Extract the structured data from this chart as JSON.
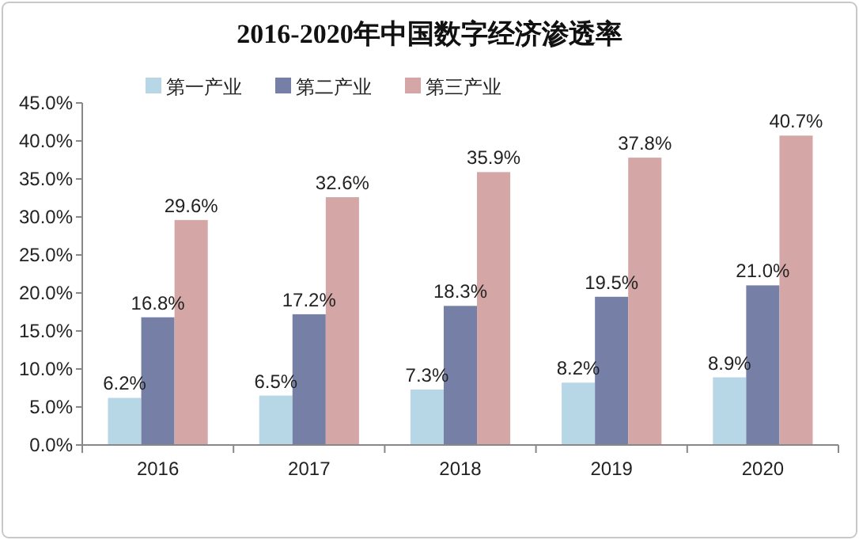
{
  "chart_data": {
    "type": "bar",
    "title": "2016-2020年中国数字经济渗透率",
    "categories": [
      "2016",
      "2017",
      "2018",
      "2019",
      "2020"
    ],
    "series": [
      {
        "name": "第一产业",
        "color": "#b7d6e6",
        "values": [
          6.2,
          6.5,
          7.3,
          8.2,
          8.9
        ],
        "value_labels": [
          "6.2%",
          "6.5%",
          "7.3%",
          "8.2%",
          "8.9%"
        ]
      },
      {
        "name": "第二产业",
        "color": "#7680a6",
        "values": [
          16.8,
          17.2,
          18.3,
          19.5,
          21.0
        ],
        "value_labels": [
          "16.8%",
          "17.2%",
          "18.3%",
          "19.5%",
          "21.0%"
        ]
      },
      {
        "name": "第三产业",
        "color": "#d4a6a6",
        "values": [
          29.6,
          32.6,
          35.9,
          37.8,
          40.7
        ],
        "value_labels": [
          "29.6%",
          "32.6%",
          "35.9%",
          "37.8%",
          "40.7%"
        ]
      }
    ],
    "ylim": [
      0,
      45
    ],
    "yticks": [
      {
        "value": 0,
        "label": "0.0%"
      },
      {
        "value": 5,
        "label": "5.0%"
      },
      {
        "value": 10,
        "label": "10.0%"
      },
      {
        "value": 15,
        "label": "15.0%"
      },
      {
        "value": 20,
        "label": "20.0%"
      },
      {
        "value": 25,
        "label": "25.0%"
      },
      {
        "value": 30,
        "label": "30.0%"
      },
      {
        "value": 35,
        "label": "35.0%"
      },
      {
        "value": 40,
        "label": "40.0%"
      },
      {
        "value": 45,
        "label": "45.0%"
      }
    ],
    "grid": false,
    "legend": "top left"
  }
}
